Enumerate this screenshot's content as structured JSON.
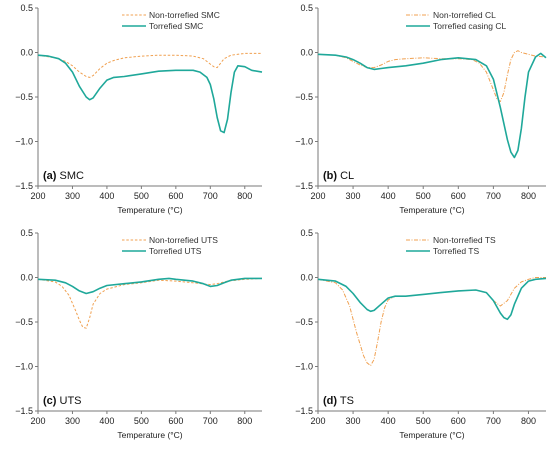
{
  "colors": {
    "non_torrefied": "#F0A050",
    "torrefied": "#1FA89A",
    "axis": "#7a7a7a"
  },
  "chart_data": [
    {
      "type": "line",
      "panel_id": "(a)",
      "panel_name": "SMC",
      "xlabel": "Temperature (°C)",
      "ylabel": "",
      "xlim": [
        200,
        850
      ],
      "ylim": [
        -1.5,
        0.5
      ],
      "xticks": [
        200,
        300,
        400,
        500,
        600,
        700,
        800
      ],
      "yticks": [
        0.5,
        0.0,
        -0.5,
        -1.0,
        -1.5
      ],
      "legend_position": "top-right",
      "series": [
        {
          "name": "Non-torrefied SMC",
          "style": "dashed",
          "x": [
            200,
            250,
            280,
            300,
            320,
            340,
            350,
            360,
            380,
            400,
            420,
            450,
            500,
            550,
            600,
            650,
            680,
            700,
            710,
            720,
            730,
            740,
            750,
            760,
            780,
            800,
            850
          ],
          "y": [
            -0.03,
            -0.06,
            -0.1,
            -0.15,
            -0.22,
            -0.27,
            -0.28,
            -0.26,
            -0.18,
            -0.12,
            -0.09,
            -0.06,
            -0.04,
            -0.03,
            -0.03,
            -0.04,
            -0.07,
            -0.13,
            -0.16,
            -0.17,
            -0.12,
            -0.07,
            -0.05,
            -0.03,
            -0.02,
            -0.01,
            -0.01
          ]
        },
        {
          "name": "Torrefied SMC",
          "style": "solid",
          "x": [
            200,
            230,
            260,
            280,
            300,
            320,
            340,
            350,
            360,
            380,
            400,
            420,
            450,
            500,
            550,
            600,
            650,
            670,
            690,
            700,
            710,
            720,
            730,
            740,
            750,
            760,
            770,
            780,
            800,
            820,
            850
          ],
          "y": [
            -0.03,
            -0.04,
            -0.07,
            -0.12,
            -0.22,
            -0.38,
            -0.5,
            -0.53,
            -0.51,
            -0.4,
            -0.31,
            -0.28,
            -0.27,
            -0.24,
            -0.21,
            -0.2,
            -0.2,
            -0.22,
            -0.28,
            -0.36,
            -0.52,
            -0.73,
            -0.88,
            -0.9,
            -0.75,
            -0.45,
            -0.22,
            -0.15,
            -0.16,
            -0.2,
            -0.22
          ]
        }
      ]
    },
    {
      "type": "line",
      "panel_id": "(b)",
      "panel_name": "CL",
      "xlabel": "Temperature (°C)",
      "ylabel": "",
      "xlim": [
        200,
        850
      ],
      "ylim": [
        -1.5,
        0.5
      ],
      "xticks": [
        200,
        300,
        400,
        500,
        600,
        700,
        800
      ],
      "yticks": [
        0.5,
        0.0,
        -0.5,
        -1.0,
        -1.5
      ],
      "legend_position": "top-right",
      "series": [
        {
          "name": "Non-torrefied CL",
          "style": "dash-dot",
          "x": [
            200,
            250,
            280,
            300,
            320,
            340,
            360,
            380,
            400,
            420,
            450,
            500,
            550,
            600,
            640,
            660,
            680,
            700,
            710,
            720,
            730,
            740,
            750,
            760,
            770,
            780,
            800,
            820,
            850
          ],
          "y": [
            -0.02,
            -0.03,
            -0.06,
            -0.1,
            -0.14,
            -0.17,
            -0.17,
            -0.14,
            -0.1,
            -0.08,
            -0.07,
            -0.06,
            -0.07,
            -0.07,
            -0.08,
            -0.12,
            -0.22,
            -0.42,
            -0.52,
            -0.55,
            -0.45,
            -0.25,
            -0.08,
            0.0,
            0.02,
            0.0,
            -0.02,
            -0.04,
            -0.05
          ]
        },
        {
          "name": "Torrefied casing CL",
          "style": "solid",
          "x": [
            200,
            250,
            280,
            300,
            320,
            340,
            360,
            380,
            400,
            450,
            500,
            550,
            600,
            650,
            680,
            700,
            720,
            740,
            750,
            760,
            770,
            780,
            790,
            800,
            820,
            835,
            850
          ],
          "y": [
            -0.02,
            -0.03,
            -0.05,
            -0.08,
            -0.12,
            -0.17,
            -0.19,
            -0.18,
            -0.17,
            -0.15,
            -0.12,
            -0.08,
            -0.06,
            -0.08,
            -0.15,
            -0.3,
            -0.62,
            -0.98,
            -1.12,
            -1.18,
            -1.1,
            -0.85,
            -0.5,
            -0.22,
            -0.05,
            -0.01,
            -0.06
          ]
        }
      ]
    },
    {
      "type": "line",
      "panel_id": "(c)",
      "panel_name": "UTS",
      "xlabel": "Temperature (°C)",
      "ylabel": "",
      "xlim": [
        200,
        850
      ],
      "ylim": [
        -1.5,
        0.5
      ],
      "xticks": [
        200,
        300,
        400,
        500,
        600,
        700,
        800
      ],
      "yticks": [
        0.5,
        0.0,
        -0.5,
        -1.0,
        -1.5
      ],
      "legend_position": "top-right",
      "series": [
        {
          "name": "Non-torrefied UTS",
          "style": "dashed",
          "x": [
            200,
            250,
            270,
            290,
            310,
            320,
            330,
            340,
            350,
            360,
            380,
            400,
            450,
            500,
            550,
            600,
            650,
            700,
            720,
            750,
            800,
            850
          ],
          "y": [
            -0.02,
            -0.05,
            -0.1,
            -0.2,
            -0.38,
            -0.48,
            -0.56,
            -0.57,
            -0.45,
            -0.3,
            -0.18,
            -0.13,
            -0.08,
            -0.06,
            -0.03,
            -0.04,
            -0.06,
            -0.08,
            -0.07,
            -0.04,
            -0.02,
            -0.01
          ]
        },
        {
          "name": "Torrefied UTS",
          "style": "solid",
          "x": [
            200,
            250,
            280,
            300,
            320,
            340,
            360,
            380,
            400,
            450,
            500,
            550,
            580,
            600,
            650,
            680,
            700,
            720,
            740,
            760,
            800,
            850
          ],
          "y": [
            -0.02,
            -0.03,
            -0.06,
            -0.1,
            -0.15,
            -0.18,
            -0.16,
            -0.12,
            -0.09,
            -0.07,
            -0.05,
            -0.02,
            -0.01,
            -0.02,
            -0.04,
            -0.07,
            -0.1,
            -0.09,
            -0.06,
            -0.03,
            -0.01,
            -0.01
          ]
        }
      ]
    },
    {
      "type": "line",
      "panel_id": "(d)",
      "panel_name": "TS",
      "xlabel": "Temperature (°C)",
      "ylabel": "",
      "xlim": [
        200,
        850
      ],
      "ylim": [
        -1.5,
        0.5
      ],
      "xticks": [
        200,
        300,
        400,
        500,
        600,
        700,
        800
      ],
      "yticks": [
        0.5,
        0.0,
        -0.5,
        -1.0,
        -1.5
      ],
      "legend_position": "top-right",
      "series": [
        {
          "name": "Non-torrefied TS",
          "style": "dash-dot",
          "x": [
            200,
            250,
            270,
            290,
            310,
            330,
            340,
            350,
            360,
            370,
            380,
            390,
            400,
            420,
            450,
            500,
            550,
            600,
            650,
            680,
            700,
            720,
            740,
            760,
            780,
            800,
            820,
            850
          ],
          "y": [
            -0.02,
            -0.06,
            -0.14,
            -0.32,
            -0.62,
            -0.88,
            -0.96,
            -0.99,
            -0.92,
            -0.72,
            -0.5,
            -0.34,
            -0.25,
            -0.21,
            -0.21,
            -0.19,
            -0.17,
            -0.15,
            -0.14,
            -0.17,
            -0.26,
            -0.32,
            -0.26,
            -0.12,
            -0.05,
            -0.02,
            0.0,
            0.0
          ]
        },
        {
          "name": "Torrefied TS",
          "style": "solid",
          "x": [
            200,
            250,
            280,
            300,
            320,
            340,
            350,
            360,
            380,
            400,
            420,
            450,
            500,
            550,
            600,
            650,
            680,
            700,
            720,
            730,
            740,
            750,
            760,
            780,
            800,
            820,
            850
          ],
          "y": [
            -0.02,
            -0.04,
            -0.1,
            -0.18,
            -0.28,
            -0.36,
            -0.38,
            -0.37,
            -0.3,
            -0.23,
            -0.21,
            -0.21,
            -0.19,
            -0.17,
            -0.15,
            -0.14,
            -0.17,
            -0.26,
            -0.4,
            -0.45,
            -0.47,
            -0.42,
            -0.3,
            -0.12,
            -0.04,
            -0.02,
            -0.01
          ]
        }
      ]
    }
  ]
}
